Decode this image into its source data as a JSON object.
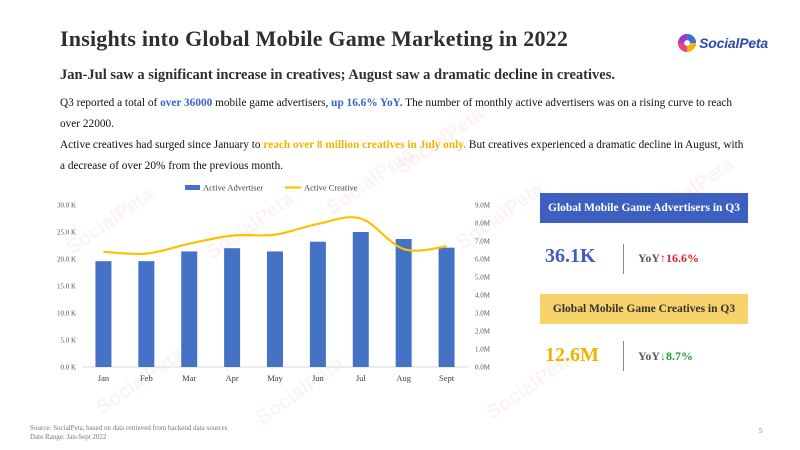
{
  "title": "Insights into Global Mobile Game Marketing in 2022",
  "logo": {
    "text": "SocialPeta",
    "icon": "socialpeta-logo-icon"
  },
  "watermark_text": "SocialPeta",
  "subtitle": "Jan-Jul saw a significant increase in creatives; August saw a dramatic decline in creatives.",
  "para1": {
    "t1": "Q3 reported a total of ",
    "h1": "over 36000",
    "t2": " mobile game advertisers, ",
    "h2": "up 16.6% YoY.",
    "t3": " The number of monthly active advertisers was on a rising curve to reach over 22000."
  },
  "para2": {
    "t1": "Active creatives had surged since January to ",
    "h1": "reach over 8 million creatives in July only.",
    "t2": " But creatives experienced a dramatic decline in August, with a decrease of over 20% from the previous month."
  },
  "chart_data": {
    "type": "bar+line",
    "categories": [
      "Jan",
      "Feb",
      "Mar",
      "Apr",
      "May",
      "Jun",
      "Jul",
      "Aug",
      "Sept"
    ],
    "series": [
      {
        "name": "Active Advertiser",
        "type": "bar",
        "axis": "left",
        "color": "#4472c4",
        "values": [
          19600,
          19600,
          21400,
          22000,
          21400,
          23200,
          25000,
          23700,
          22100
        ]
      },
      {
        "name": "Active Creative",
        "type": "line",
        "axis": "right",
        "color": "#ffc000",
        "values": [
          6.4,
          6.3,
          6.85,
          7.3,
          7.35,
          7.95,
          8.25,
          6.55,
          6.7
        ]
      }
    ],
    "y_left": {
      "min": 0,
      "max": 30,
      "ticks": [
        "0.0 K",
        "5.0 K",
        "10.0 K",
        "15.0 K",
        "20.0 K",
        "25.0 K",
        "30.0 K"
      ]
    },
    "y_right": {
      "min": 0,
      "max": 9,
      "ticks": [
        "0.0M",
        "1.0M",
        "2.0M",
        "3.0M",
        "4.0M",
        "5.0M",
        "6.0M",
        "7.0M",
        "8.0M",
        "9.0M"
      ]
    },
    "legend_position": "top-center",
    "grid": false
  },
  "stats": {
    "advertisers": {
      "label": "Global Mobile Game Advertisers in Q3",
      "value": "36.1K",
      "yoy_prefix": "YoY",
      "yoy_arrow": "↑",
      "yoy_value": "16.6%"
    },
    "creatives": {
      "label": "Global Mobile Game Creatives in Q3",
      "value": "12.6M",
      "yoy_prefix": "YoY",
      "yoy_arrow": "↓",
      "yoy_value": "8.7%"
    }
  },
  "footer": {
    "source": "Source: SocialPeta, based on data retrieved from backend data sources",
    "range": "Date Range: Jan-Sept 2022"
  },
  "page_number": "5"
}
